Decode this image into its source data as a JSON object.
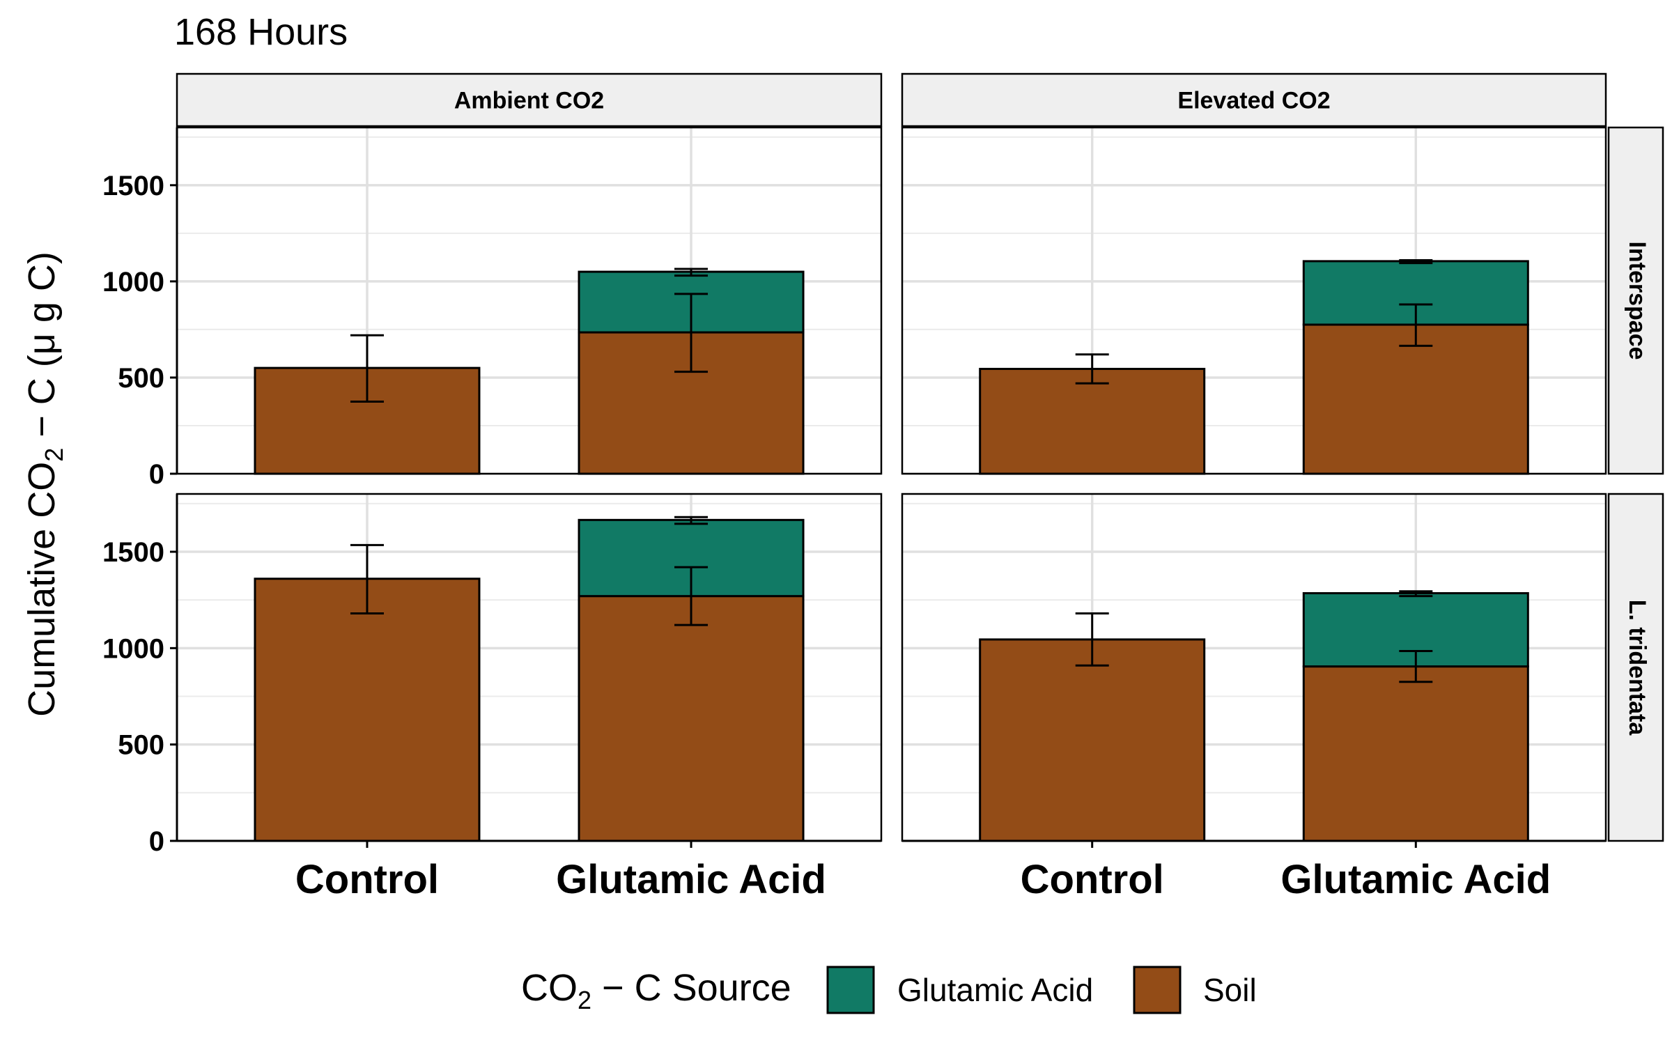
{
  "chart_data": {
    "type": "bar",
    "stacked": true,
    "title": "168 Hours",
    "ylabel": {
      "main": "Cumulative CO",
      "sub": "2",
      "rest": " − C (μ g C)"
    },
    "categories": [
      "Control",
      "Glutamic Acid"
    ],
    "col_facets": [
      "Ambient CO2",
      "Elevated CO2"
    ],
    "row_facets": [
      "Interspace",
      "L. tridentata"
    ],
    "ylim": [
      0,
      1800
    ],
    "yticks": [
      0,
      500,
      1000,
      1500
    ],
    "grid": true,
    "legend": {
      "title_main": "CO",
      "title_sub": "2",
      "title_rest": " − C Source",
      "position": "bottom",
      "entries": [
        {
          "label": "Glutamic Acid",
          "color": "#117a65"
        },
        {
          "label": "Soil",
          "color": "#934c17"
        }
      ]
    },
    "colors": {
      "soil": "#934c17",
      "glutamic": "#117a65"
    },
    "panels": [
      {
        "row": 0,
        "col": 0,
        "bars": [
          {
            "category": "Control",
            "soil": 550,
            "glutamic": 0,
            "soil_err": [
              375,
              720
            ]
          },
          {
            "category": "Glutamic Acid",
            "soil": 735,
            "glutamic": 315,
            "soil_err": [
              530,
              935
            ],
            "total_err": [
              1030,
              1065
            ]
          }
        ]
      },
      {
        "row": 0,
        "col": 1,
        "bars": [
          {
            "category": "Control",
            "soil": 545,
            "glutamic": 0,
            "soil_err": [
              470,
              620
            ]
          },
          {
            "category": "Glutamic Acid",
            "soil": 775,
            "glutamic": 330,
            "soil_err": [
              665,
              880
            ],
            "total_err": [
              1095,
              1110
            ]
          }
        ]
      },
      {
        "row": 1,
        "col": 0,
        "bars": [
          {
            "category": "Control",
            "soil": 1360,
            "glutamic": 0,
            "soil_err": [
              1180,
              1535
            ]
          },
          {
            "category": "Glutamic Acid",
            "soil": 1270,
            "glutamic": 395,
            "soil_err": [
              1120,
              1420
            ],
            "total_err": [
              1645,
              1680
            ]
          }
        ]
      },
      {
        "row": 1,
        "col": 1,
        "bars": [
          {
            "category": "Control",
            "soil": 1045,
            "glutamic": 0,
            "soil_err": [
              910,
              1180
            ]
          },
          {
            "category": "Glutamic Acid",
            "soil": 905,
            "glutamic": 380,
            "soil_err": [
              825,
              985
            ],
            "total_err": [
              1270,
              1295
            ]
          }
        ]
      }
    ]
  }
}
